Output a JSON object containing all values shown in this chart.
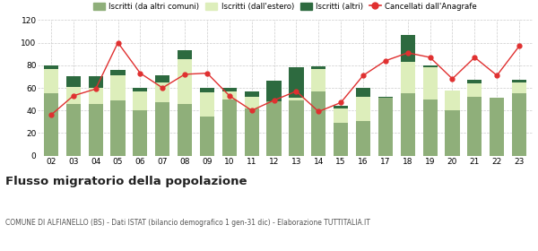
{
  "years": [
    "02",
    "03",
    "04",
    "05",
    "06",
    "07",
    "08",
    "09",
    "10",
    "11",
    "12",
    "13",
    "14",
    "15",
    "16",
    "17",
    "18",
    "19",
    "20",
    "21",
    "22",
    "23"
  ],
  "iscritti_altri_comuni": [
    55,
    46,
    46,
    49,
    40,
    47,
    46,
    35,
    50,
    42,
    48,
    49,
    57,
    29,
    31,
    51,
    55,
    50,
    40,
    52,
    51,
    55
  ],
  "iscritti_estero": [
    22,
    15,
    14,
    22,
    17,
    18,
    39,
    21,
    7,
    10,
    0,
    2,
    20,
    13,
    21,
    0,
    28,
    28,
    18,
    12,
    0,
    10
  ],
  "iscritti_altri": [
    3,
    9,
    10,
    5,
    3,
    6,
    8,
    4,
    3,
    5,
    18,
    27,
    2,
    2,
    8,
    1,
    24,
    2,
    0,
    3,
    0,
    2
  ],
  "cancellati": [
    36,
    53,
    59,
    100,
    73,
    60,
    72,
    73,
    53,
    40,
    49,
    57,
    39,
    47,
    71,
    84,
    91,
    87,
    68,
    87,
    71,
    97
  ],
  "color_comuni": "#8faf7a",
  "color_estero": "#ddeebb",
  "color_altri": "#2d6a3f",
  "color_cancellati": "#e03030",
  "legend_labels": [
    "Iscritti (da altri comuni)",
    "Iscritti (dall'estero)",
    "Iscritti (altri)",
    "Cancellati dall'Anagrafe"
  ],
  "ylim": [
    0,
    120
  ],
  "yticks": [
    0,
    20,
    40,
    60,
    80,
    100,
    120
  ],
  "title": "Flusso migratorio della popolazione",
  "subtitle": "COMUNE DI ALFIANELLO (BS) - Dati ISTAT (bilancio demografico 1 gen-31 dic) - Elaborazione TUTTITALIA.IT",
  "bg_color": "#ffffff",
  "grid_color": "#cccccc"
}
